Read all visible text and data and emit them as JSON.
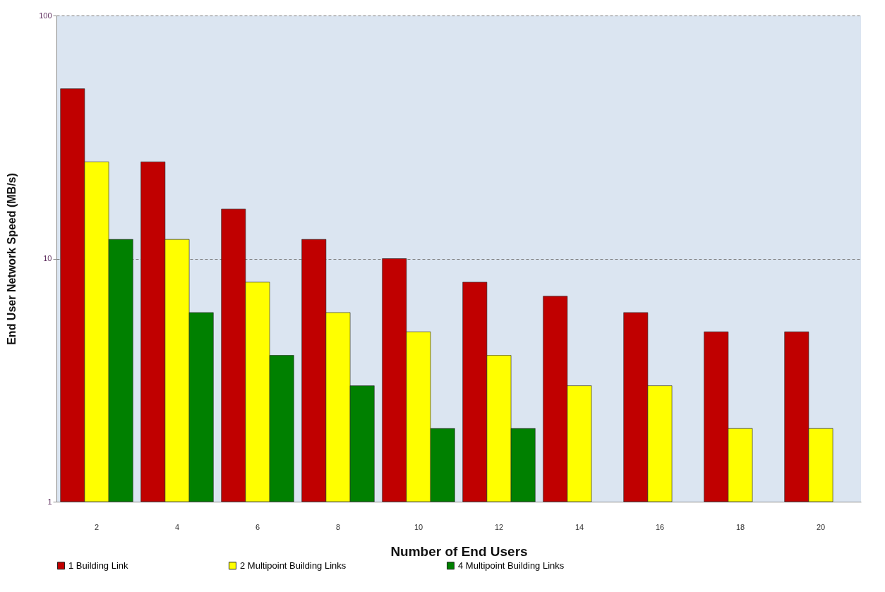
{
  "chart_data": {
    "type": "bar",
    "xlabel": "Number of End Users",
    "ylabel": "End User Network Speed (MB/s)",
    "categories": [
      "2",
      "4",
      "6",
      "8",
      "10",
      "12",
      "14",
      "16",
      "18",
      "20"
    ],
    "series": [
      {
        "name": "1 Building Link",
        "color": "#c00000",
        "values": [
          50,
          25,
          16,
          12,
          10,
          8,
          7,
          6,
          5,
          5
        ]
      },
      {
        "name": "2 Multipoint Building Links",
        "color": "#ffff00",
        "values": [
          25,
          12,
          8,
          6,
          5,
          4,
          3,
          3,
          2,
          2
        ]
      },
      {
        "name": "4 Multipoint Building Links",
        "color": "#008000",
        "values": [
          12,
          6,
          4,
          3,
          2,
          2,
          null,
          null,
          null,
          null
        ]
      }
    ],
    "log": true,
    "ylim": [
      1,
      100
    ],
    "yticks": [
      1,
      10,
      100
    ],
    "grid": "y",
    "legend": "bottom"
  }
}
